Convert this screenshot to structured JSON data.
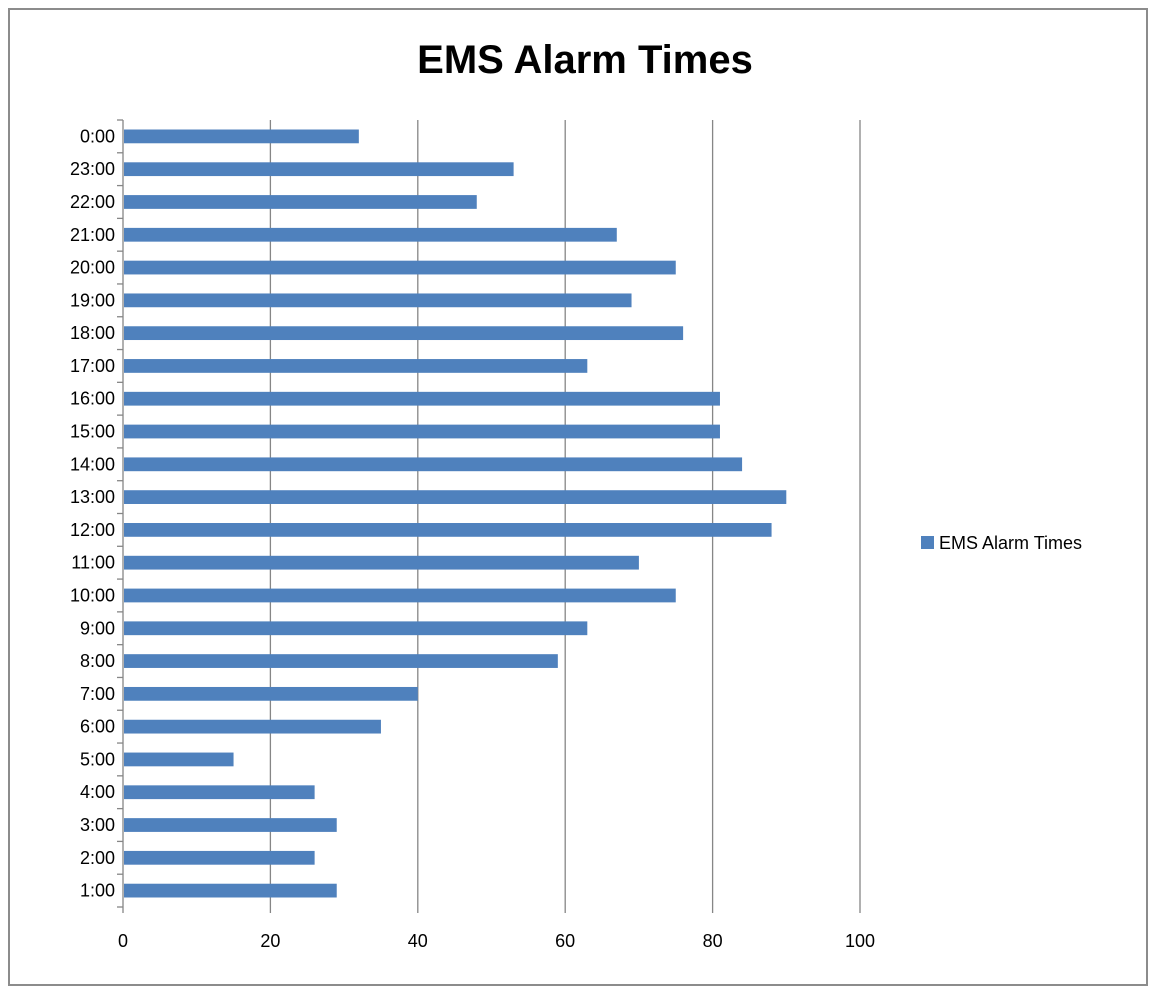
{
  "chart_data": {
    "type": "bar",
    "orientation": "horizontal",
    "title": "EMS Alarm Times",
    "xlabel": "",
    "ylabel": "",
    "xlim": [
      0,
      100
    ],
    "x_ticks": [
      "0",
      "20",
      "40",
      "60",
      "80",
      "100"
    ],
    "grid": "vertical major gridlines",
    "legend_position": "right",
    "categories": [
      "1:00",
      "2:00",
      "3:00",
      "4:00",
      "5:00",
      "6:00",
      "7:00",
      "8:00",
      "9:00",
      "10:00",
      "11:00",
      "12:00",
      "13:00",
      "14:00",
      "15:00",
      "16:00",
      "17:00",
      "18:00",
      "19:00",
      "20:00",
      "21:00",
      "22:00",
      "23:00",
      "0:00"
    ],
    "series": [
      {
        "name": "EMS Alarm Times",
        "color": "#4f81bd",
        "values": [
          29,
          26,
          29,
          26,
          15,
          35,
          40,
          59,
          63,
          75,
          70,
          88,
          90,
          84,
          81,
          81,
          63,
          76,
          69,
          75,
          67,
          48,
          53,
          32
        ]
      }
    ]
  }
}
